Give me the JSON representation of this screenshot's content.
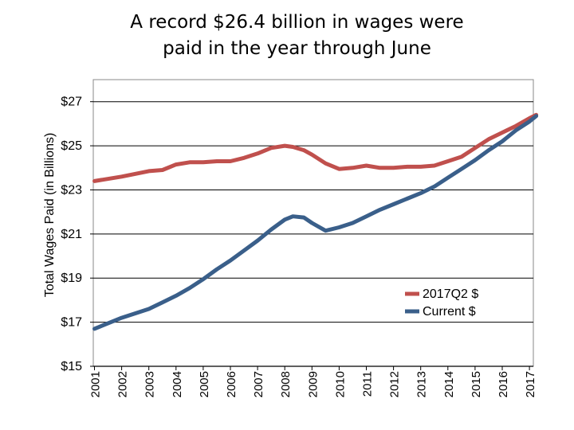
{
  "title": {
    "line1": "A record $26.4 billion in wages were",
    "line2": "paid in the year through June"
  },
  "chart_data": {
    "type": "line",
    "ylabel": "Total Wages Paid (in Billions)",
    "xlabel": "",
    "ylim": [
      15,
      28
    ],
    "xlim": [
      2001,
      2017.3
    ],
    "y_ticks": [
      15,
      17,
      19,
      21,
      23,
      25,
      27
    ],
    "y_tick_labels": [
      "$15",
      "$17",
      "$19",
      "$21",
      "$23",
      "$25",
      "$27"
    ],
    "x_tick_labels": [
      "2001",
      "2002",
      "2003",
      "2004",
      "2005",
      "2006",
      "2007",
      "2008",
      "2009",
      "2010",
      "2011",
      "2012",
      "2013",
      "2014",
      "2015",
      "2016",
      "2017"
    ],
    "grid": "horizontal",
    "legend_position": "right, inside plot",
    "series": [
      {
        "name": "2017Q2 $",
        "color": "#c0504d",
        "x": [
          2001,
          2002,
          2003,
          2003.5,
          2004,
          2004.5,
          2005,
          2005.5,
          2006,
          2006.5,
          2007,
          2007.5,
          2008,
          2008.3,
          2008.7,
          2009,
          2009.5,
          2010,
          2010.5,
          2011,
          2011.5,
          2012,
          2012.5,
          2013,
          2013.5,
          2014,
          2014.5,
          2015,
          2015.5,
          2016,
          2016.5,
          2017,
          2017.25
        ],
        "y": [
          23.4,
          23.6,
          23.85,
          23.9,
          24.15,
          24.25,
          24.25,
          24.3,
          24.3,
          24.45,
          24.65,
          24.9,
          25.0,
          24.95,
          24.8,
          24.6,
          24.2,
          23.95,
          24.0,
          24.1,
          24.0,
          24.0,
          24.05,
          24.05,
          24.1,
          24.3,
          24.5,
          24.9,
          25.3,
          25.6,
          25.9,
          26.25,
          26.4
        ]
      },
      {
        "name": "Current $",
        "color": "#3a5f8a",
        "x": [
          2001,
          2002,
          2003,
          2003.5,
          2004,
          2004.5,
          2005,
          2005.5,
          2006,
          2006.5,
          2007,
          2007.5,
          2008,
          2008.3,
          2008.7,
          2009,
          2009.5,
          2010,
          2010.5,
          2011,
          2011.5,
          2012,
          2012.5,
          2013,
          2013.5,
          2014,
          2014.5,
          2015,
          2015.5,
          2016,
          2016.5,
          2017,
          2017.25
        ],
        "y": [
          16.7,
          17.2,
          17.6,
          17.9,
          18.2,
          18.55,
          18.95,
          19.4,
          19.8,
          20.25,
          20.7,
          21.2,
          21.65,
          21.8,
          21.75,
          21.5,
          21.15,
          21.3,
          21.5,
          21.8,
          22.1,
          22.35,
          22.6,
          22.85,
          23.15,
          23.55,
          23.95,
          24.35,
          24.8,
          25.2,
          25.7,
          26.1,
          26.35
        ]
      }
    ]
  }
}
